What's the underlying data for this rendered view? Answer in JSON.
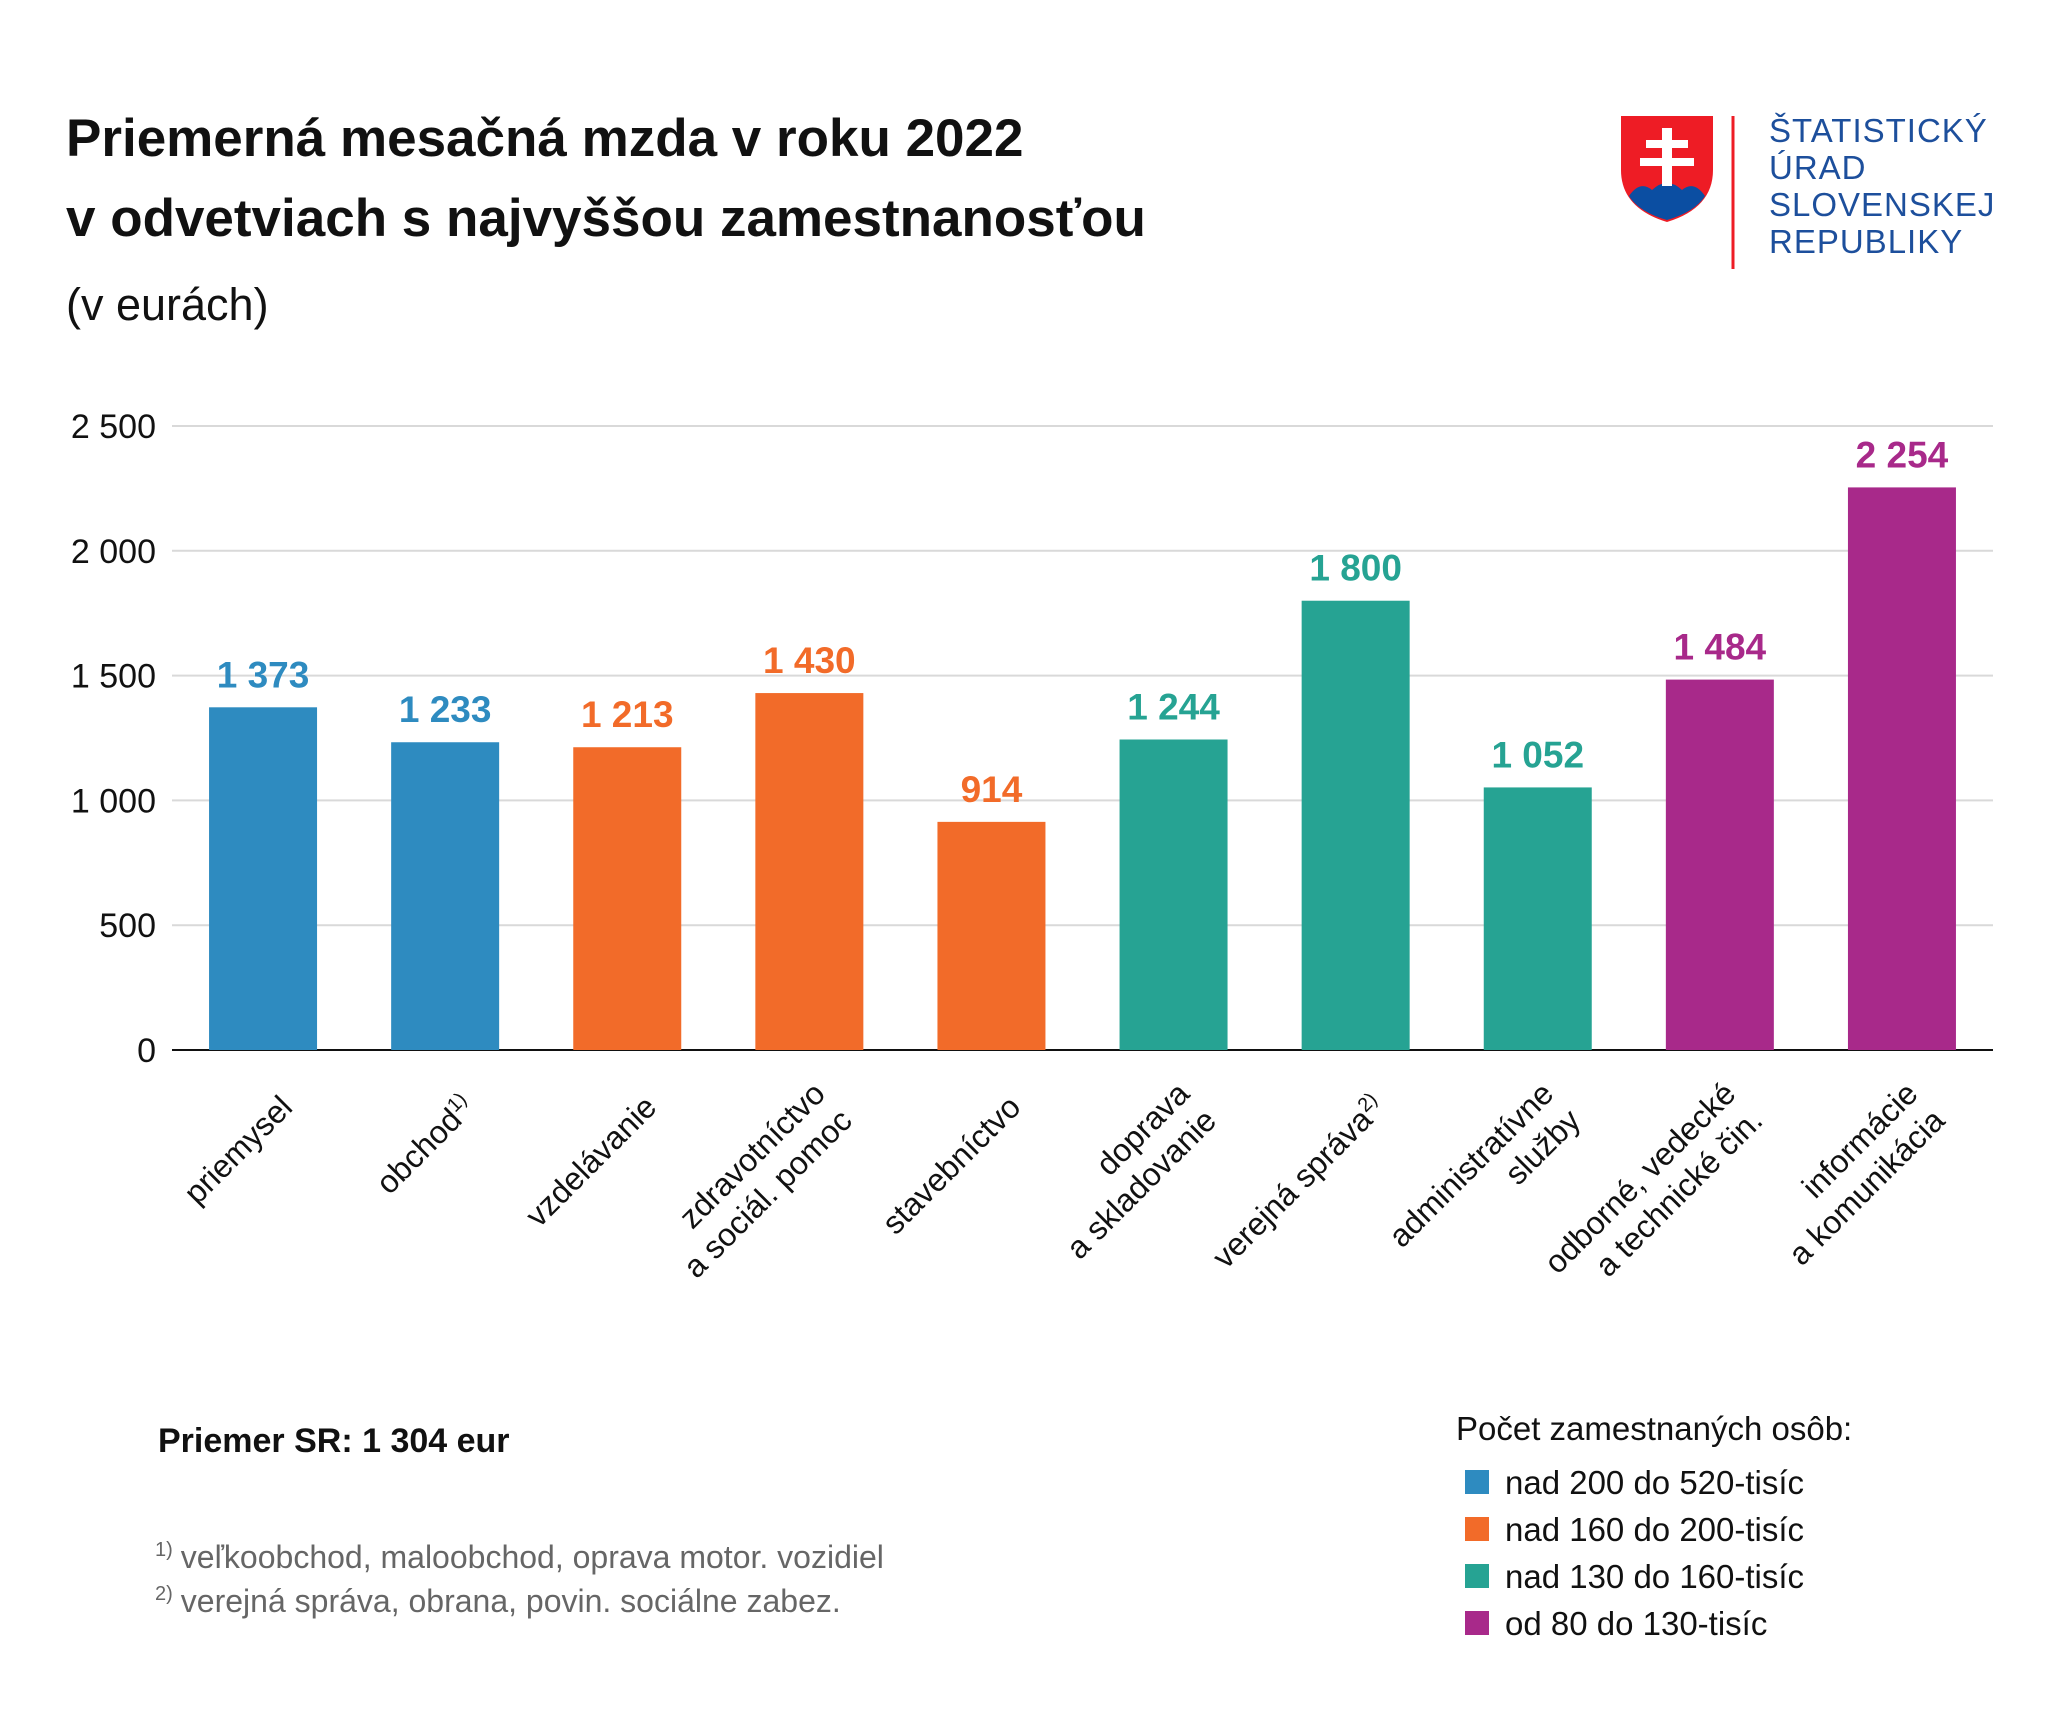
{
  "chart_data": {
    "type": "bar",
    "title": [
      "Priemerná mesačná mzda v roku 2022",
      "v odvetviach s najvyššou zamestnanosťou"
    ],
    "subtitle": "(v eurách)",
    "categories": [
      [
        "priemysel"
      ],
      [
        "obchod"
      ],
      [
        "vzdelávanie"
      ],
      [
        "zdravotníctvo",
        "a sociál. pomoc"
      ],
      [
        "stavebníctvo"
      ],
      [
        "doprava",
        "a skladovanie"
      ],
      [
        "verejná správa"
      ],
      [
        "administratívne",
        "služby"
      ],
      [
        "odborné, vedecké",
        "a technické čin."
      ],
      [
        "informácie",
        "a komunikácia"
      ]
    ],
    "category_notes": {
      "1": "1)",
      "6": "2)"
    },
    "values": [
      1373,
      1233,
      1213,
      1430,
      914,
      1244,
      1800,
      1052,
      1484,
      2254
    ],
    "value_labels": [
      "1 373",
      "1 233",
      "1 213",
      "1 430",
      "914",
      "1 244",
      "1 800",
      "1 052",
      "1 484",
      "2 254"
    ],
    "bar_colors": [
      "#2e8bc0",
      "#2e8bc0",
      "#f26b29",
      "#f26b29",
      "#f26b29",
      "#26a393",
      "#26a393",
      "#26a393",
      "#a8298a",
      "#a8298a"
    ],
    "ylim": [
      0,
      2500
    ],
    "yticks": [
      0,
      500,
      {
        "value": 1000,
        "label": "1 000"
      },
      {
        "value": 1500,
        "label": "1 500"
      },
      {
        "value": 2000,
        "label": "2 000"
      },
      {
        "value": 2500,
        "label": "2 500"
      }
    ],
    "grid": true,
    "average_note": "Priemer SR: 1 304 eur",
    "legend": {
      "title": "Počet zamestnaných osôb:",
      "items": [
        {
          "name": "nad 200 do 520-tisíc",
          "color": "#2e8bc0"
        },
        {
          "name": "nad 160 do 200-tisíc",
          "color": "#f26b29"
        },
        {
          "name": "nad 130 do 160-tisíc",
          "color": "#26a393"
        },
        {
          "name": "od 80 do 130-tisíc",
          "color": "#a8298a"
        }
      ]
    },
    "footnotes": [
      {
        "marker": "1)",
        "text": "veľkoobchod, maloobchod, oprava motor. vozidiel"
      },
      {
        "marker": "2)",
        "text": "verejná správa, obrana, povin. sociálne zabez."
      }
    ]
  },
  "logo": {
    "lines": [
      "ŠTATISTICKÝ",
      "ÚRAD",
      "SLOVENSKEJ",
      "REPUBLIKY"
    ]
  }
}
